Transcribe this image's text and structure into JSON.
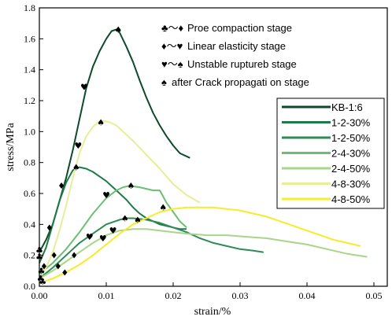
{
  "chart_data": {
    "type": "line",
    "title": "",
    "xlabel": "strain/%",
    "ylabel": "stress/MPa",
    "xlim": [
      0,
      0.052
    ],
    "ylim": [
      0,
      1.8
    ],
    "x_ticks": [
      "0.00",
      "0.01",
      "0.02",
      "0.03",
      "0.04",
      "0.05"
    ],
    "x_tick_values": [
      0,
      0.01,
      0.02,
      0.03,
      0.04,
      0.05
    ],
    "y_ticks": [
      "0.0",
      "0.2",
      "0.4",
      "0.6",
      "0.8",
      "1.0",
      "1.2",
      "1.4",
      "1.6",
      "1.8"
    ],
    "y_tick_values": [
      0,
      0.2,
      0.4,
      0.6,
      0.8,
      1.0,
      1.2,
      1.4,
      1.6,
      1.8
    ],
    "grid": false,
    "legend_position": "right",
    "stage_notes": [
      {
        "symbol": "♣～♦",
        "text": "Proe compaction stage"
      },
      {
        "symbol": "♦～♥",
        "text": "Linear elasticity stage"
      },
      {
        "symbol": "♥～♠",
        "text": "Unstable ruptureb stage"
      },
      {
        "symbol": "♠",
        "text": "after Crack propagati on stage"
      }
    ],
    "series": [
      {
        "name": "KB-1:6",
        "color": "#0d4a2b",
        "x": [
          0,
          0.001,
          0.002,
          0.003,
          0.004,
          0.005,
          0.006,
          0.007,
          0.008,
          0.009,
          0.01,
          0.0108,
          0.0115,
          0.012,
          0.013,
          0.014,
          0.015,
          0.016,
          0.017,
          0.018,
          0.019,
          0.02,
          0.021,
          0.0225
        ],
        "y": [
          0.22,
          0.3,
          0.4,
          0.55,
          0.7,
          0.88,
          1.08,
          1.28,
          1.42,
          1.52,
          1.6,
          1.65,
          1.66,
          1.64,
          1.55,
          1.45,
          1.33,
          1.22,
          1.12,
          1.04,
          0.97,
          0.91,
          0.86,
          0.83
        ]
      },
      {
        "name": "1-2-30%",
        "color": "#1f7a45",
        "x": [
          0,
          0.001,
          0.002,
          0.003,
          0.004,
          0.005,
          0.006,
          0.007,
          0.008,
          0.009,
          0.01,
          0.011,
          0.012,
          0.013,
          0.014,
          0.015,
          0.016,
          0.017,
          0.018,
          0.019,
          0.02,
          0.021,
          0.022
        ],
        "y": [
          0.15,
          0.25,
          0.4,
          0.55,
          0.67,
          0.75,
          0.77,
          0.76,
          0.74,
          0.71,
          0.68,
          0.64,
          0.6,
          0.56,
          0.51,
          0.47,
          0.44,
          0.42,
          0.4,
          0.39,
          0.38,
          0.37,
          0.37
        ]
      },
      {
        "name": "1-2-50%",
        "color": "#2e8b55",
        "x": [
          0,
          0.002,
          0.004,
          0.006,
          0.008,
          0.01,
          0.012,
          0.013,
          0.014,
          0.016,
          0.018,
          0.02,
          0.022,
          0.024,
          0.026,
          0.028,
          0.03,
          0.032,
          0.0335
        ],
        "y": [
          0.05,
          0.12,
          0.2,
          0.28,
          0.34,
          0.4,
          0.43,
          0.44,
          0.44,
          0.43,
          0.41,
          0.38,
          0.35,
          0.31,
          0.28,
          0.26,
          0.24,
          0.23,
          0.22
        ]
      },
      {
        "name": "2-4-30%",
        "color": "#6abf72",
        "x": [
          0,
          0.002,
          0.004,
          0.006,
          0.008,
          0.01,
          0.0115,
          0.0125,
          0.0135,
          0.015,
          0.017,
          0.018,
          0.0185,
          0.019,
          0.02,
          0.0205,
          0.021,
          0.022
        ],
        "y": [
          0.08,
          0.15,
          0.24,
          0.35,
          0.47,
          0.57,
          0.62,
          0.64,
          0.65,
          0.64,
          0.62,
          0.62,
          0.58,
          0.54,
          0.48,
          0.45,
          0.42,
          0.38
        ]
      },
      {
        "name": "2-4-50%",
        "color": "#a8d58a",
        "x": [
          0,
          0.002,
          0.004,
          0.006,
          0.008,
          0.01,
          0.012,
          0.014,
          0.016,
          0.018,
          0.02,
          0.022,
          0.025,
          0.028,
          0.031,
          0.034,
          0.037,
          0.04,
          0.043,
          0.046,
          0.049
        ],
        "y": [
          0.05,
          0.1,
          0.16,
          0.22,
          0.28,
          0.33,
          0.36,
          0.37,
          0.37,
          0.36,
          0.35,
          0.34,
          0.33,
          0.33,
          0.32,
          0.31,
          0.29,
          0.27,
          0.24,
          0.21,
          0.19
        ]
      },
      {
        "name": "4-8-30%",
        "color": "#e8ee98",
        "x": [
          0,
          0.001,
          0.002,
          0.003,
          0.004,
          0.005,
          0.006,
          0.007,
          0.008,
          0.0088,
          0.0095,
          0.0105,
          0.0115,
          0.0125,
          0.014,
          0.016,
          0.018,
          0.02,
          0.022,
          0.024
        ],
        "y": [
          0.05,
          0.12,
          0.22,
          0.36,
          0.52,
          0.7,
          0.86,
          0.97,
          1.03,
          1.06,
          1.07,
          1.06,
          1.04,
          1.0,
          0.94,
          0.85,
          0.76,
          0.66,
          0.59,
          0.54
        ]
      },
      {
        "name": "4-8-50%",
        "color": "#f5ec2a",
        "x": [
          0,
          0.002,
          0.004,
          0.006,
          0.008,
          0.01,
          0.012,
          0.014,
          0.016,
          0.018,
          0.02,
          0.022,
          0.024,
          0.026,
          0.028,
          0.03,
          0.032,
          0.034,
          0.036,
          0.038,
          0.04,
          0.042,
          0.044,
          0.046,
          0.048
        ],
        "y": [
          0.02,
          0.05,
          0.09,
          0.14,
          0.2,
          0.27,
          0.34,
          0.4,
          0.44,
          0.48,
          0.5,
          0.51,
          0.51,
          0.51,
          0.5,
          0.49,
          0.47,
          0.45,
          0.42,
          0.39,
          0.36,
          0.33,
          0.3,
          0.28,
          0.26
        ]
      }
    ],
    "markers": [
      {
        "symbol": "♣",
        "x": 0.0003,
        "y": 0.1
      },
      {
        "symbol": "♣",
        "x": 0.0005,
        "y": 0.03
      },
      {
        "symbol": "♣",
        "x": 0.0,
        "y": 0.19
      },
      {
        "symbol": "♣",
        "x": 0.0,
        "y": 0.235
      },
      {
        "symbol": "♣",
        "x": 0.0002,
        "y": 0.05
      },
      {
        "symbol": "♦",
        "x": 0.0007,
        "y": 0.13
      },
      {
        "symbol": "♦",
        "x": 0.0015,
        "y": 0.38
      },
      {
        "symbol": "♦",
        "x": 0.0022,
        "y": 0.2
      },
      {
        "symbol": "♦",
        "x": 0.0028,
        "y": 0.13
      },
      {
        "symbol": "♦",
        "x": 0.0038,
        "y": 0.09
      },
      {
        "symbol": "♦",
        "x": 0.0052,
        "y": 0.2
      },
      {
        "symbol": "♦",
        "x": 0.0033,
        "y": 0.65
      },
      {
        "symbol": "♥",
        "x": 0.0058,
        "y": 0.91
      },
      {
        "symbol": "♥",
        "x": 0.0067,
        "y": 1.29
      },
      {
        "symbol": "♥",
        "x": 0.0075,
        "y": 0.32
      },
      {
        "symbol": "♥",
        "x": 0.0095,
        "y": 0.31
      },
      {
        "symbol": "♥",
        "x": 0.01,
        "y": 0.59
      },
      {
        "symbol": "♥",
        "x": 0.011,
        "y": 0.36
      },
      {
        "symbol": "♠",
        "x": 0.0055,
        "y": 0.77
      },
      {
        "symbol": "♠",
        "x": 0.0092,
        "y": 1.06
      },
      {
        "symbol": "♠",
        "x": 0.0118,
        "y": 1.66
      },
      {
        "symbol": "♠",
        "x": 0.0128,
        "y": 0.44
      },
      {
        "symbol": "♠",
        "x": 0.0137,
        "y": 0.65
      },
      {
        "symbol": "♠",
        "x": 0.0147,
        "y": 0.43
      },
      {
        "symbol": "♠",
        "x": 0.0185,
        "y": 0.51
      }
    ]
  }
}
